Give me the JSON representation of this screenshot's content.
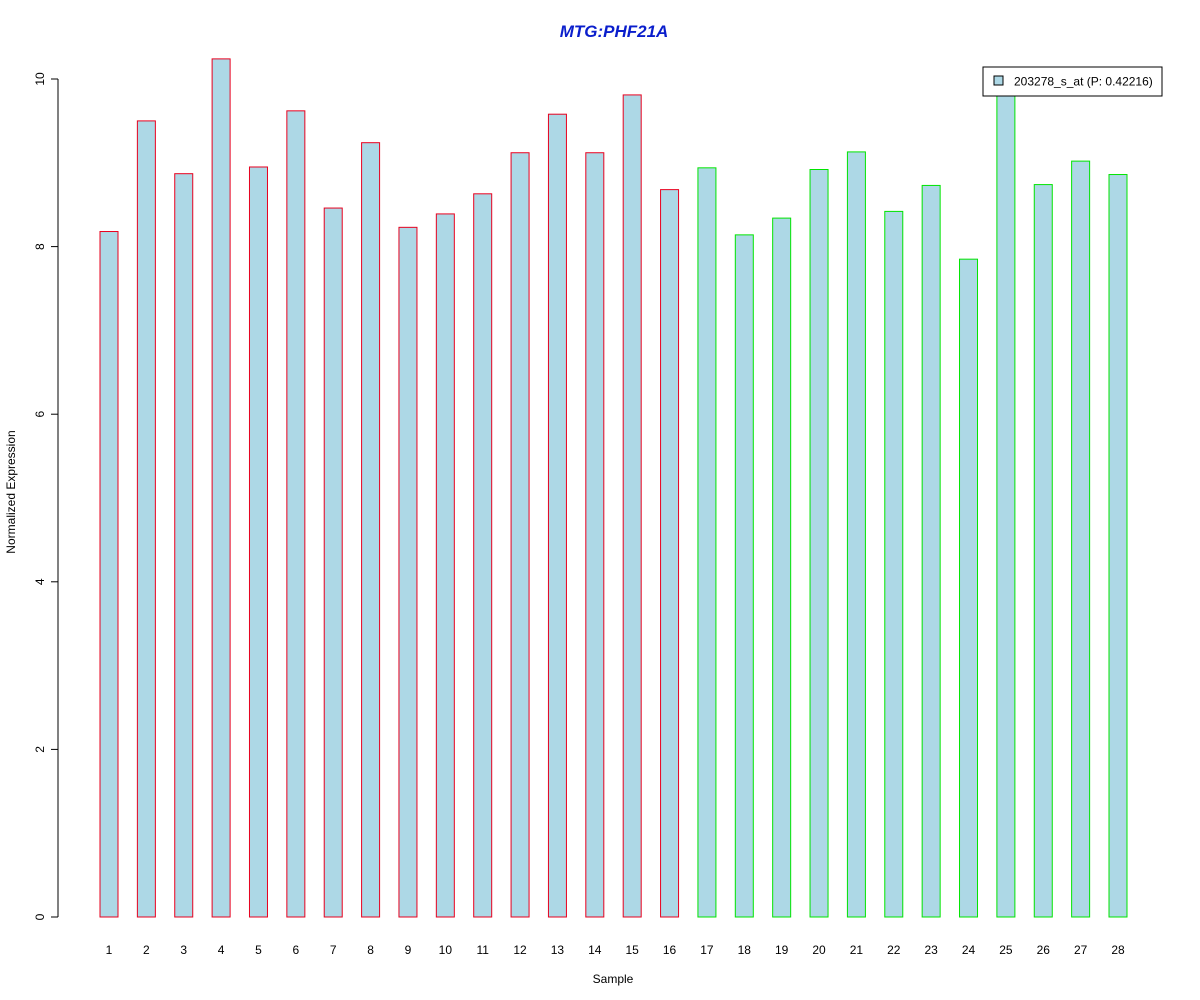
{
  "chart_data": {
    "type": "bar",
    "title": "MTG:PHF21A",
    "xlabel": "Sample",
    "ylabel": "Normalized Expression",
    "ylim": [
      0,
      10.3
    ],
    "yticks": [
      0,
      2,
      4,
      6,
      8,
      10
    ],
    "categories": [
      "1",
      "2",
      "3",
      "4",
      "5",
      "6",
      "7",
      "8",
      "9",
      "10",
      "11",
      "12",
      "13",
      "14",
      "15",
      "16",
      "17",
      "18",
      "19",
      "20",
      "21",
      "22",
      "23",
      "24",
      "25",
      "26",
      "27",
      "28"
    ],
    "series": [
      {
        "name": "203278_s_at (P: 0.42216)",
        "values": [
          8.18,
          9.5,
          8.87,
          10.24,
          8.95,
          9.62,
          8.46,
          9.24,
          8.23,
          8.39,
          8.63,
          9.12,
          9.58,
          9.12,
          9.81,
          8.68,
          8.94,
          8.14,
          8.34,
          8.92,
          9.13,
          8.42,
          8.73,
          7.85,
          9.85,
          8.74,
          9.02,
          8.86
        ]
      }
    ],
    "groups": [
      {
        "samples": [
          1,
          16
        ],
        "border_color": "#e8001e"
      },
      {
        "samples": [
          17,
          28
        ],
        "border_color": "#00e400"
      }
    ],
    "fill_color": "#add8e6",
    "title_color": "#0a1ecc",
    "grid": false,
    "legend_position": "top-right"
  }
}
